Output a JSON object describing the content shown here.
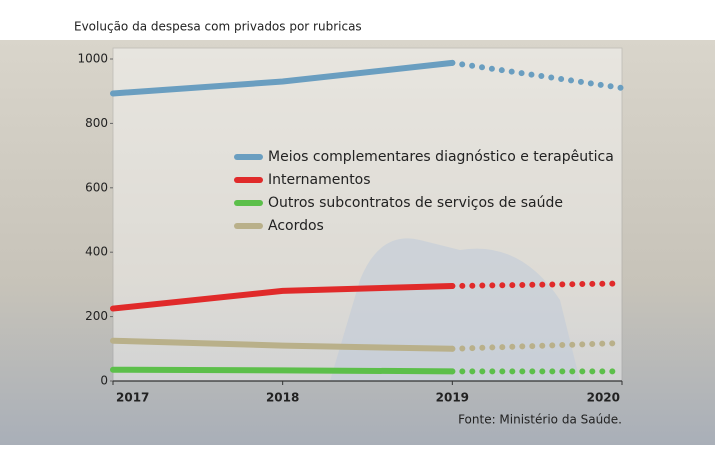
{
  "chart_data": {
    "type": "line",
    "title": "Evolução da despesa com privados por rubricas",
    "source": "Fonte: Ministério da Saúde.",
    "x": [
      2017,
      2018,
      2019,
      2020
    ],
    "xlim": [
      2017,
      2020
    ],
    "xticks": [
      2017,
      2018,
      2019,
      2020
    ],
    "ylim": [
      0,
      1000
    ],
    "yticks": [
      0,
      200,
      400,
      600,
      800,
      1000
    ],
    "dotted_last_segment": true,
    "legend": "upper center",
    "series": [
      {
        "name": "Meios complementares diagnóstico e terapêutica",
        "color": "#6a9ec0",
        "values": [
          893,
          930,
          988,
          910
        ]
      },
      {
        "name": "Internamentos",
        "color": "#e02a2a",
        "values": [
          225,
          280,
          295,
          303
        ]
      },
      {
        "name": "Outros subcontratos de serviços de saúde",
        "color": "#5cbf4a",
        "values": [
          35,
          33,
          30,
          30
        ]
      },
      {
        "name": "Acordos",
        "color": "#b9b08a",
        "values": [
          125,
          110,
          100,
          118
        ]
      }
    ]
  }
}
